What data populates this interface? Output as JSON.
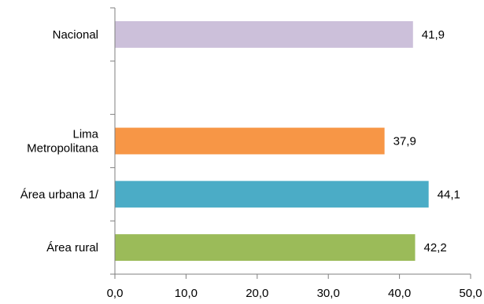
{
  "chart_data": {
    "type": "bar",
    "orientation": "horizontal",
    "title": "",
    "xlabel": "",
    "ylabel": "",
    "xlim": [
      0,
      50
    ],
    "x_ticks": [
      0,
      10,
      20,
      30,
      40,
      50
    ],
    "x_tick_labels": [
      "0,0",
      "10,0",
      "20,0",
      "30,0",
      "40,0",
      "50,0"
    ],
    "grid": false,
    "legend": "none",
    "categories": [
      {
        "label_lines": [
          "Nacional"
        ],
        "value": 41.9,
        "value_label": "41,9",
        "color": "#ccc0da"
      },
      {
        "label_lines": [],
        "value": null,
        "value_label": "",
        "color": ""
      },
      {
        "label_lines": [
          "Lima",
          "Metropolitana"
        ],
        "value": 37.9,
        "value_label": "37,9",
        "color": "#f79646"
      },
      {
        "label_lines": [
          "Área urbana 1/"
        ],
        "value": 44.1,
        "value_label": "44,1",
        "color": "#4bacc6"
      },
      {
        "label_lines": [
          "Área rural"
        ],
        "value": 42.2,
        "value_label": "42,2",
        "color": "#9bbb59"
      }
    ]
  }
}
